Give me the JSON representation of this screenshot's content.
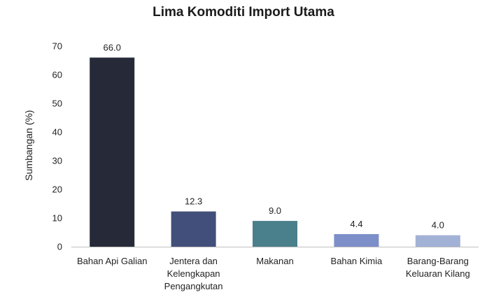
{
  "chart_data": {
    "type": "bar",
    "title": "Lima Komoditi Import Utama",
    "ylabel": "Sumbangan (%)",
    "xlabel": "",
    "ylim": [
      0,
      70
    ],
    "yticks": [
      0,
      10,
      20,
      30,
      40,
      50,
      60,
      70
    ],
    "categories": [
      "Bahan Api Galian",
      "Jentera dan Kelengkapan Pengangkutan",
      "Makanan",
      "Bahan Kimia",
      "Barang-Barang Keluaran Kilang"
    ],
    "category_lines": [
      [
        "Bahan Api Galian"
      ],
      [
        "Jentera dan",
        "Kelengkapan",
        "Pengangkutan"
      ],
      [
        "Makanan"
      ],
      [
        "Bahan Kimia"
      ],
      [
        "Barang-Barang",
        "Keluaran Kilang"
      ]
    ],
    "values": [
      66.0,
      12.3,
      9.0,
      4.4,
      4.0
    ],
    "value_labels": [
      "66.0",
      "12.3",
      "9.0",
      "4.4",
      "4.0"
    ],
    "colors": [
      "#262a38",
      "#414f7a",
      "#4a7f8c",
      "#7d8fc8",
      "#a2b1d6"
    ],
    "grid": false,
    "legend": "none"
  }
}
